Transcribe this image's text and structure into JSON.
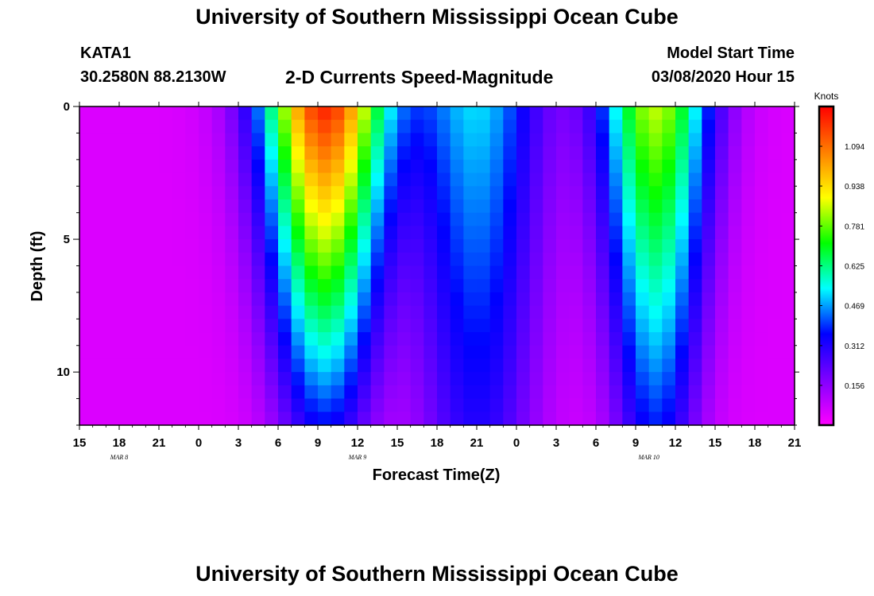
{
  "header": {
    "title": "University of Southern Mississippi Ocean Cube",
    "station": "KATA1",
    "coords": "30.2580N 88.2130W",
    "chart_title": "2-D Currents Speed-Magnitude",
    "start_label": "Model Start Time",
    "start_value": "03/08/2020 Hour 15"
  },
  "footer": {
    "title": "University of Southern Mississippi Ocean Cube"
  },
  "chart_data": {
    "type": "heatmap",
    "title": "2-D Currents Speed-Magnitude",
    "xlabel": "Forecast Time(Z)",
    "ylabel": "Depth (ft)",
    "x_tick_labels": [
      "15",
      "18",
      "21",
      "0",
      "3",
      "6",
      "9",
      "12",
      "15",
      "18",
      "21",
      "0",
      "3",
      "6",
      "9",
      "12",
      "15",
      "18",
      "21"
    ],
    "date_labels": [
      {
        "text": "MAR 8",
        "at_hour": 3
      },
      {
        "text": "MAR 9",
        "at_hour": 21
      },
      {
        "text": "MAR 10",
        "at_hour": 43
      }
    ],
    "x_range_hours": [
      0,
      54
    ],
    "y_ticks": [
      0,
      5,
      10
    ],
    "ylim": [
      0,
      12
    ],
    "colorbar": {
      "label": "Knots",
      "ticks": [
        1.094,
        0.938,
        0.781,
        0.625,
        0.469,
        0.312,
        0.156
      ],
      "range": [
        0,
        1.25
      ],
      "stops": [
        "#ff00ff",
        "#7f00ff",
        "#0000ff",
        "#00ffff",
        "#00ff00",
        "#ffff00",
        "#ff7f00",
        "#ff0000"
      ]
    },
    "speed_model": {
      "forecast_hour_step": 1,
      "depth_step_ft": 0.5,
      "peaks": [
        {
          "hour": 18.5,
          "surface": 1.15,
          "bottom": 0.3,
          "half_width_surface": 3.4,
          "half_width_bottom": 2.6
        },
        {
          "hour": 30.0,
          "surface": 0.46,
          "bottom": 0.26,
          "half_width_surface": 3.6,
          "half_width_bottom": 3.2
        },
        {
          "hour": 43.5,
          "surface": 0.8,
          "bottom": 0.32,
          "half_width_surface": 3.0,
          "half_width_bottom": 2.3
        }
      ],
      "baseline": 0.05
    }
  }
}
